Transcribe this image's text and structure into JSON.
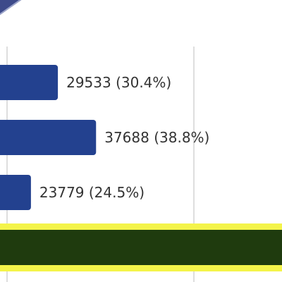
{
  "chart_data": {
    "type": "bar",
    "orientation": "horizontal",
    "categories": [
      "",
      "",
      "",
      ""
    ],
    "values": [
      29533,
      37688,
      23779,
      null
    ],
    "data_labels": [
      "29533 (30.4%)",
      "37688 (38.8%)",
      "23779 (24.5%)",
      ""
    ],
    "title": "",
    "xlabel": "",
    "ylabel": "",
    "grid": true,
    "colors": {
      "bar": "#23418f",
      "highlight_bar": "#1f3b0e",
      "highlight_band": "#f4f44a",
      "gridline": "#c9c9c9",
      "corner_shape": "#3d4a8a"
    }
  }
}
